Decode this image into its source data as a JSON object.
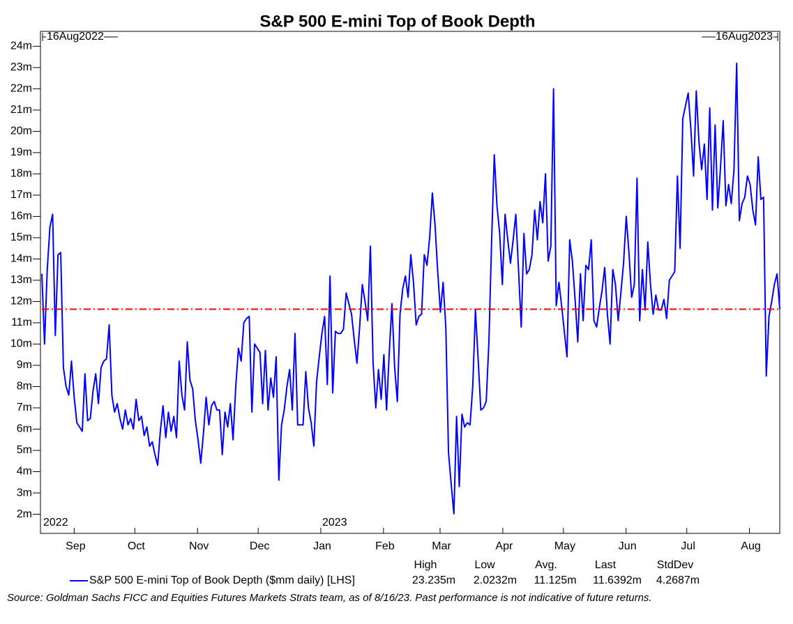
{
  "chart_data": {
    "type": "line",
    "title": "S&P 500 E-mini Top of Book Depth",
    "range_labels": [
      "16Aug2022",
      "16Aug2023"
    ],
    "xlim": [
      "2022-08-16",
      "2023-08-16"
    ],
    "xticks": [
      {
        "value": "2022-09-01",
        "label": "Sep"
      },
      {
        "value": "2022-10-01",
        "label": "Oct"
      },
      {
        "value": "2022-11-01",
        "label": "Nov"
      },
      {
        "value": "2022-12-01",
        "label": "Dec"
      },
      {
        "value": "2023-01-01",
        "label": "Jan"
      },
      {
        "value": "2023-02-01",
        "label": "Feb"
      },
      {
        "value": "2023-03-01",
        "label": "Mar"
      },
      {
        "value": "2023-04-01",
        "label": "Apr"
      },
      {
        "value": "2023-05-01",
        "label": "May"
      },
      {
        "value": "2023-06-01",
        "label": "Jun"
      },
      {
        "value": "2023-07-01",
        "label": "Jul"
      },
      {
        "value": "2023-08-01",
        "label": "Aug"
      }
    ],
    "year_ticks": [
      {
        "value": "2022-08-16",
        "label": "2022"
      },
      {
        "value": "2023-01-01",
        "label": "2023"
      }
    ],
    "ylim": [
      1.1,
      24.7
    ],
    "yticks": [
      {
        "value": 2,
        "label": "2m"
      },
      {
        "value": 3,
        "label": "3m"
      },
      {
        "value": 4,
        "label": "4m"
      },
      {
        "value": 5,
        "label": "5m"
      },
      {
        "value": 6,
        "label": "6m"
      },
      {
        "value": 7,
        "label": "7m"
      },
      {
        "value": 8,
        "label": "8m"
      },
      {
        "value": 9,
        "label": "9m"
      },
      {
        "value": 10,
        "label": "10m"
      },
      {
        "value": 11,
        "label": "11m"
      },
      {
        "value": 12,
        "label": "12m"
      },
      {
        "value": 13,
        "label": "13m"
      },
      {
        "value": 14,
        "label": "14m"
      },
      {
        "value": 15,
        "label": "15m"
      },
      {
        "value": 16,
        "label": "16m"
      },
      {
        "value": 17,
        "label": "17m"
      },
      {
        "value": 18,
        "label": "18m"
      },
      {
        "value": 19,
        "label": "19m"
      },
      {
        "value": 20,
        "label": "20m"
      },
      {
        "value": 21,
        "label": "21m"
      },
      {
        "value": 22,
        "label": "22m"
      },
      {
        "value": 23,
        "label": "23m"
      },
      {
        "value": 24,
        "label": "24m"
      }
    ],
    "series": [
      {
        "name": "S&P 500 E-mini Top of Book Depth ($mm daily) [LHS]",
        "color": "#0000ff",
        "values": [
          13.3,
          10,
          13.5,
          15.5,
          16.1,
          10.4,
          14.2,
          14.3,
          8.9,
          8,
          7.6,
          9.2,
          7.5,
          6.3,
          6.1,
          5.9,
          8.6,
          6.4,
          6.5,
          7.8,
          8.6,
          7.2,
          8.9,
          9.2,
          9.3,
          10.9,
          7.6,
          6.8,
          7.2,
          6.5,
          6,
          6.9,
          6.2,
          6.5,
          6,
          7.4,
          6.4,
          6.6,
          5.7,
          6.1,
          5.2,
          5.4,
          4.8,
          4.3,
          5.9,
          7.1,
          5.6,
          6.8,
          5.9,
          6.6,
          5.6,
          9.2,
          7.6,
          6.9,
          10.1,
          8.3,
          7.9,
          6.4,
          5.5,
          4.4,
          5.8,
          7.5,
          6.2,
          7.1,
          7.3,
          6.9,
          6.9,
          4.8,
          6.8,
          6.1,
          7.2,
          5.5,
          8,
          9.8,
          9.2,
          11,
          11.2,
          11.3,
          6.8,
          10,
          9.8,
          9.6,
          7.2,
          9.7,
          6.9,
          8.4,
          7.5,
          9.4,
          3.6,
          6.2,
          6.9,
          8,
          8.8,
          6.9,
          10.5,
          6.2,
          6.2,
          6.2,
          8.7,
          7,
          6.3,
          5.2,
          8.2,
          9.4,
          10.5,
          11.3,
          8.1,
          13.2,
          7.7,
          10.6,
          10.5,
          10.5,
          10.7,
          12.4,
          11.9,
          11.4,
          10.2,
          9.1,
          10.8,
          12.8,
          12,
          11.1,
          14.6,
          9.1,
          7,
          8.8,
          7.4,
          9.5,
          6.9,
          9.6,
          11.9,
          8.9,
          7.3,
          11.4,
          12.6,
          13.2,
          12.2,
          14.2,
          12.9,
          10.9,
          11.3,
          11.4,
          14.2,
          13.7,
          15,
          17.1,
          15.6,
          13.4,
          11.5,
          12.9,
          10.8,
          4.9,
          3.4,
          2.02,
          6.6,
          3.3,
          6.7,
          6.1,
          6.3,
          6.2,
          8,
          11.6,
          9.3,
          6.9,
          7,
          7.3,
          10.1,
          14.8,
          18.9,
          16.5,
          15.2,
          12.8,
          16.1,
          14.9,
          13.8,
          14.9,
          16.1,
          13.5,
          10.8,
          15.2,
          13.3,
          13.5,
          14.2,
          16.3,
          14.9,
          16.7,
          15.7,
          18,
          13.9,
          14.6,
          22,
          11.8,
          12.9,
          11.8,
          10.6,
          9.4,
          14.9,
          13.9,
          12.1,
          10.1,
          13.3,
          11.1,
          13.7,
          13.5,
          14.9,
          11.1,
          10.8,
          11.7,
          12.5,
          13.6,
          11.4,
          10,
          13.5,
          12.8,
          11.1,
          12.4,
          13.8,
          16,
          14.3,
          12.2,
          12.8,
          17.8,
          11.1,
          13.5,
          11.6,
          14.8,
          12.8,
          11.4,
          12.3,
          11.6,
          11.6,
          12.1,
          11.2,
          13,
          13.2,
          13.4,
          17.9,
          14.5,
          20.6,
          21.2,
          21.8,
          20.1,
          17.9,
          21.9,
          19.5,
          18.2,
          19.4,
          16.8,
          21.1,
          16.3,
          20.3,
          16.4,
          18.3,
          20.5,
          16.5,
          17.5,
          16.6,
          18.2,
          23.2,
          15.8,
          16.6,
          16.9,
          17.9,
          17.5,
          16.3,
          15.6,
          18.8,
          16.8,
          16.9,
          8.5,
          11.3,
          12,
          12.8,
          13.3,
          11.64
        ]
      }
    ],
    "stats": [
      {
        "name": "High",
        "value": 23.235,
        "label": "23.235m"
      },
      {
        "name": "Low",
        "value": 2.0232,
        "label": "2.0232m"
      },
      {
        "name": "Avg.",
        "value": 11.125,
        "label": "11.125m"
      },
      {
        "name": "Last",
        "value": 11.6392,
        "label": "11.6392m"
      },
      {
        "name": "StdDev",
        "value": 4.2687,
        "label": "4.2687m"
      }
    ],
    "reference_line_color": "#ff0000",
    "source": "Source: Goldman Sachs FICC and Equities Futures Markets Strats team, as of 8/16/23. Past performance is not indicative of future returns."
  }
}
